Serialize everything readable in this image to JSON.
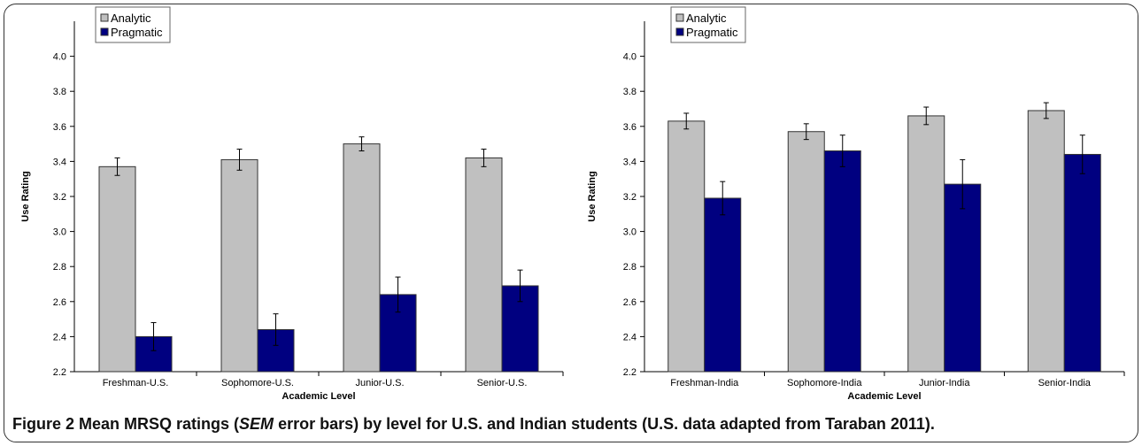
{
  "caption": {
    "label": "Figure 2",
    "text_a": " Mean MRSQ ratings (",
    "text_em": "SEM",
    "text_b": " error bars) by level for U.S. and Indian students (U.S. data adapted from Taraban 2011)."
  },
  "colors": {
    "analytic": "#c0c0c0",
    "pragmatic": "#000080",
    "bar_stroke": "#333333"
  },
  "chart_data": [
    {
      "type": "bar",
      "title": "",
      "xlabel": "Academic Level",
      "ylabel": "Use Rating",
      "ylim": [
        2.2,
        4.2
      ],
      "yticks": [
        "2.2",
        "2.4",
        "2.6",
        "2.8",
        "3.0",
        "3.2",
        "3.4",
        "3.6",
        "3.8",
        "4.0"
      ],
      "grid": false,
      "legend": "top-left",
      "categories": [
        "Freshman-U.S.",
        "Sophomore-U.S.",
        "Junior-U.S.",
        "Senior-U.S."
      ],
      "series": [
        {
          "name": "Analytic",
          "values": [
            3.37,
            3.41,
            3.5,
            3.42
          ],
          "errors": [
            0.05,
            0.06,
            0.04,
            0.05
          ]
        },
        {
          "name": "Pragmatic",
          "values": [
            2.4,
            2.44,
            2.64,
            2.69
          ],
          "errors": [
            0.08,
            0.09,
            0.1,
            0.09
          ]
        }
      ]
    },
    {
      "type": "bar",
      "title": "",
      "xlabel": "Academic Level",
      "ylabel": "Use Rating",
      "ylim": [
        2.2,
        4.2
      ],
      "yticks": [
        "2.2",
        "2.4",
        "2.6",
        "2.8",
        "3.0",
        "3.2",
        "3.4",
        "3.6",
        "3.8",
        "4.0"
      ],
      "grid": false,
      "legend": "top-left",
      "categories": [
        "Freshman-India",
        "Sophomore-India",
        "Junior-India",
        "Senior-India"
      ],
      "series": [
        {
          "name": "Analytic",
          "values": [
            3.63,
            3.57,
            3.66,
            3.69
          ],
          "errors": [
            0.045,
            0.045,
            0.05,
            0.045
          ]
        },
        {
          "name": "Pragmatic",
          "values": [
            3.19,
            3.46,
            3.27,
            3.44
          ],
          "errors": [
            0.095,
            0.09,
            0.14,
            0.11
          ]
        }
      ]
    }
  ]
}
